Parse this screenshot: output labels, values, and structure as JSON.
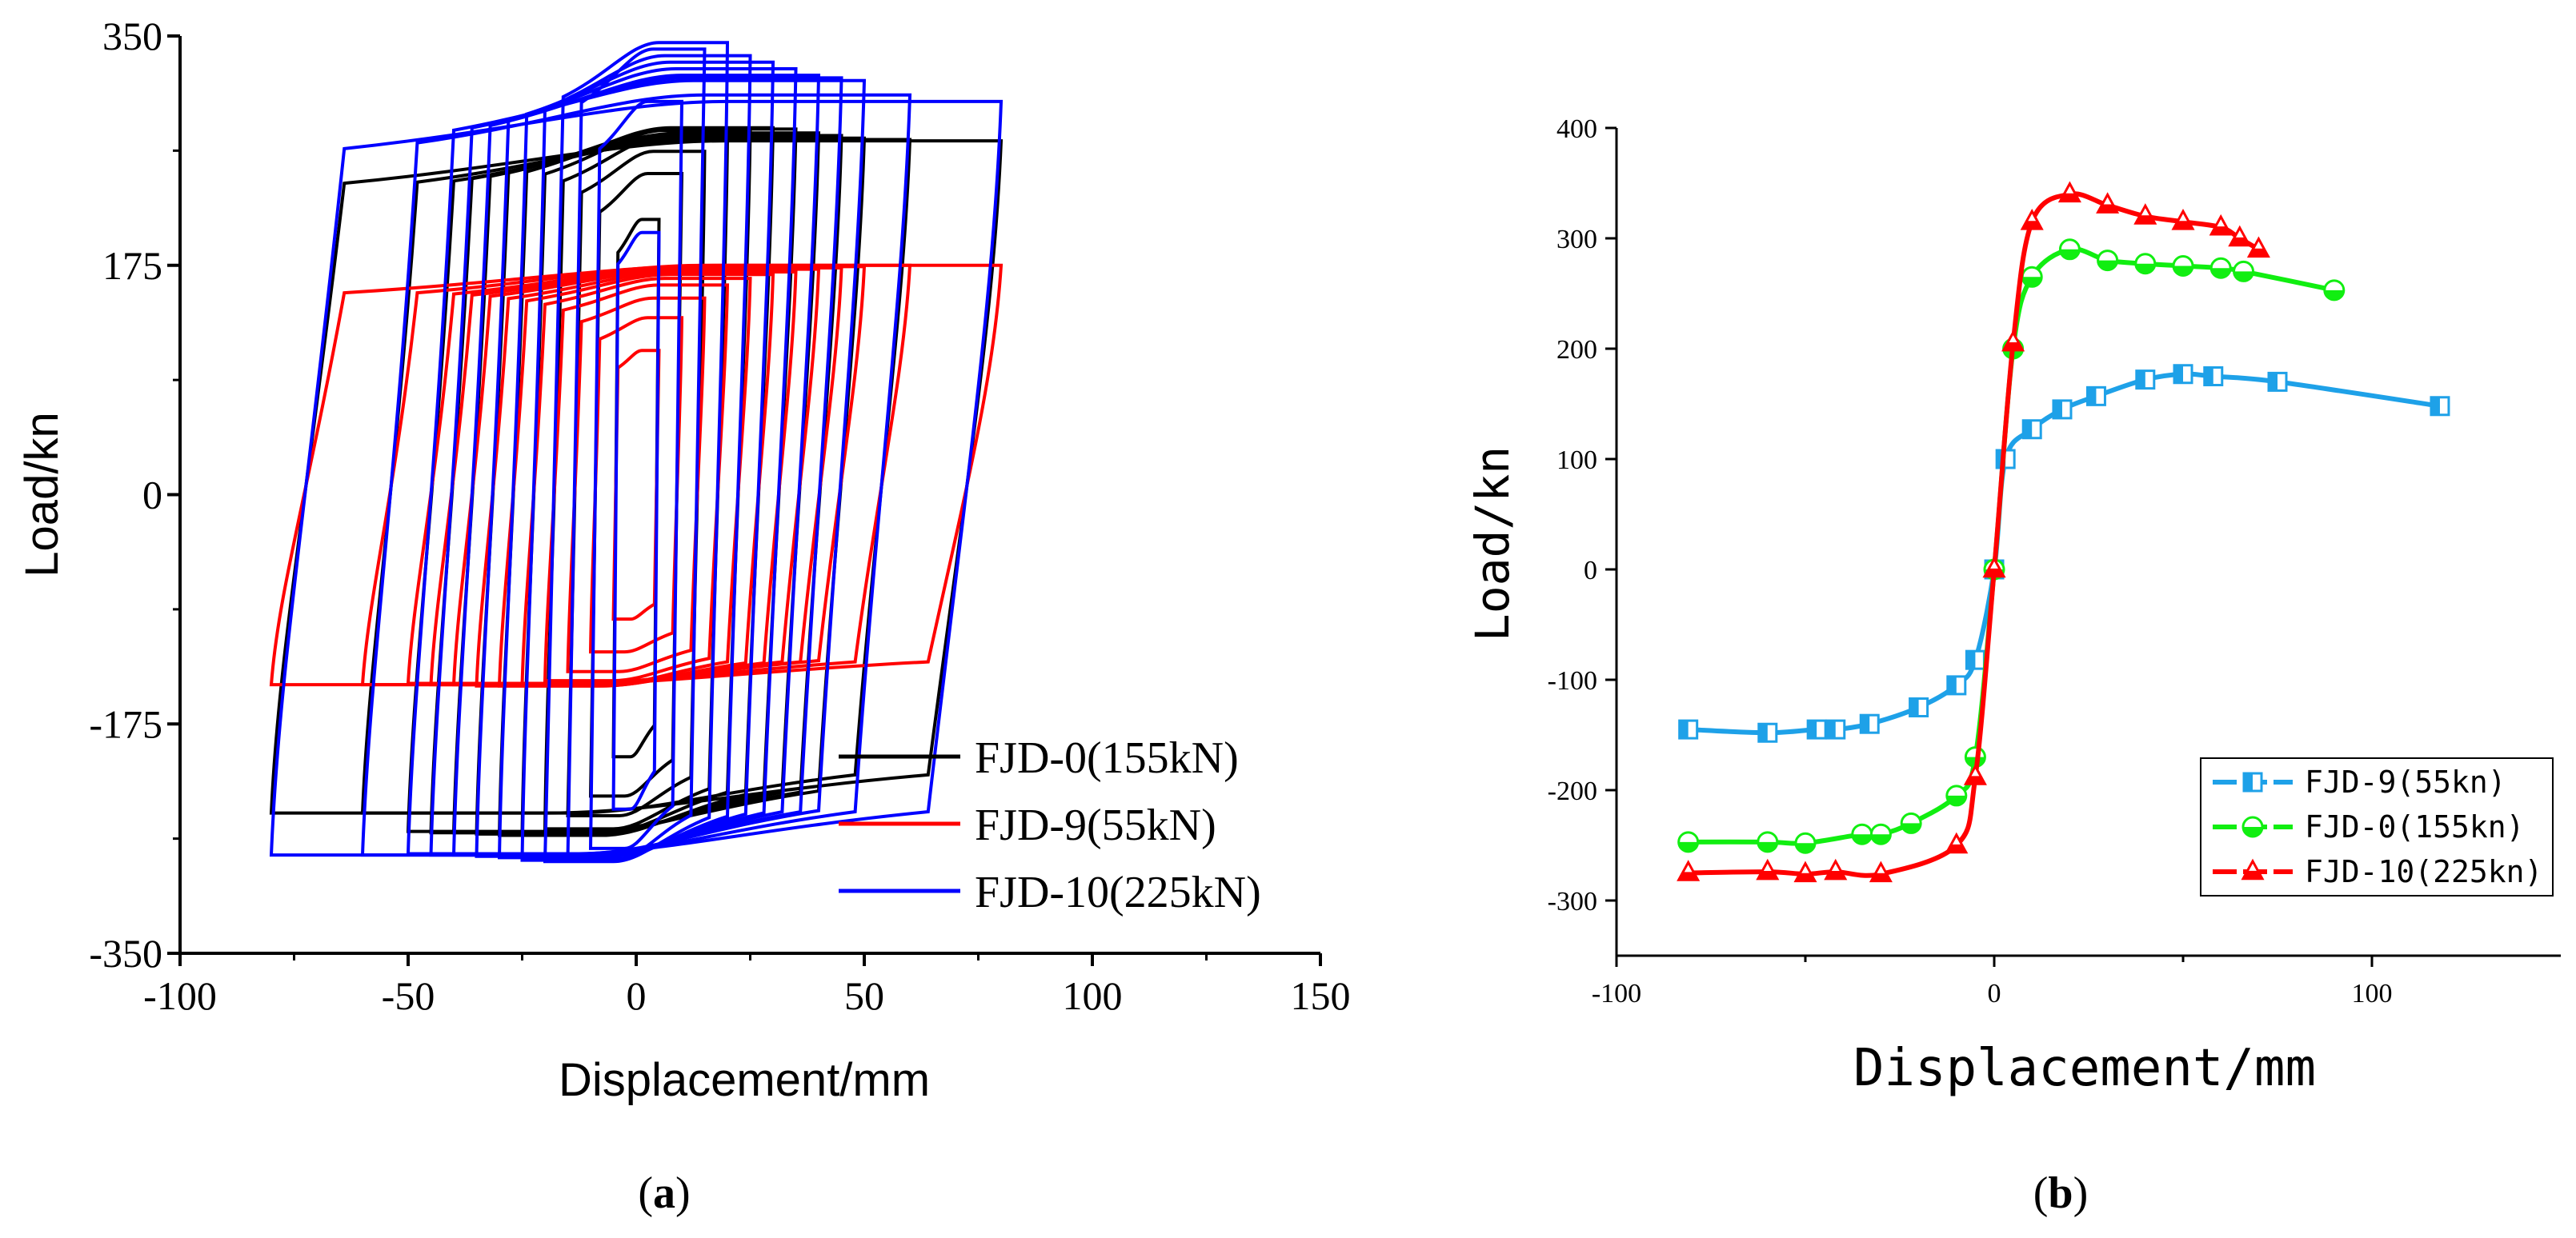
{
  "chart_data": [
    {
      "panel_label": "a",
      "type": "line",
      "subtype": "hysteresis",
      "xlabel": "Displacement/mm",
      "ylabel": "Load/kn",
      "xlim": [
        -100,
        150
      ],
      "ylim": [
        -350,
        350
      ],
      "xticks": [
        -100,
        -50,
        0,
        50,
        100,
        150
      ],
      "yticks": [
        -350,
        -175,
        0,
        175,
        350
      ],
      "grid": false,
      "legend_position": "bottom-right",
      "series": [
        {
          "name": "FJD-0(155kN)",
          "color": "#000000",
          "amplitudes": [
            5,
            10,
            15,
            20,
            25,
            30,
            35,
            40,
            45,
            50,
            60,
            80
          ],
          "peak_pos": [
            210,
            245,
            262,
            272,
            278,
            280,
            279,
            276,
            274,
            272,
            271,
            270
          ],
          "peak_neg": [
            -200,
            -230,
            -245,
            -255,
            -258,
            -260,
            -259,
            -258,
            -258,
            -257,
            -243,
            -243
          ]
        },
        {
          "name": "FJD-9(55kN)",
          "color": "#ff0000",
          "amplitudes": [
            5,
            10,
            15,
            20,
            25,
            30,
            35,
            40,
            45,
            50,
            60,
            80
          ],
          "peak_pos": [
            110,
            135,
            150,
            160,
            165,
            168,
            170,
            172,
            173,
            174,
            175,
            175
          ],
          "peak_neg": [
            -95,
            -120,
            -135,
            -142,
            -145,
            -146,
            -146,
            -145,
            -145,
            -144,
            -145,
            -145
          ]
        },
        {
          "name": "FJD-10(225kN)",
          "color": "#0000ff",
          "amplitudes": [
            5,
            10,
            15,
            20,
            25,
            30,
            35,
            40,
            45,
            50,
            60,
            80
          ],
          "peak_pos": [
            200,
            300,
            340,
            345,
            335,
            330,
            325,
            320,
            318,
            316,
            305,
            300
          ],
          "peak_neg": [
            -240,
            -270,
            -278,
            -280,
            -279,
            -277,
            -276,
            -275,
            -275,
            -274,
            -275,
            -275
          ]
        }
      ]
    },
    {
      "panel_label": "b",
      "type": "line",
      "subtype": "skeleton",
      "xlabel": "Displacement/mm",
      "ylabel": "Load/kn",
      "xlim": [
        -100,
        150
      ],
      "ylim": [
        -350,
        400
      ],
      "xticks": [
        -100,
        0,
        100
      ],
      "yticks": [
        -300,
        -200,
        -100,
        0,
        100,
        200,
        300,
        400
      ],
      "grid": false,
      "legend_position": "bottom-right",
      "series": [
        {
          "name": "FJD-9(55kn)",
          "color": "#1ea1e8",
          "marker": "half-square",
          "x": [
            -81,
            -60,
            -47,
            -42,
            -33,
            -20,
            -10,
            -5,
            0,
            3,
            10,
            18,
            27,
            40,
            50,
            58,
            75,
            118
          ],
          "y": [
            -145,
            -148,
            -145,
            -145,
            -140,
            -125,
            -105,
            -82,
            0,
            100,
            127,
            145,
            157,
            172,
            177,
            175,
            170,
            148
          ]
        },
        {
          "name": "FJD-0(155kn)",
          "color": "#11ee11",
          "marker": "half-circle",
          "x": [
            -81,
            -60,
            -50,
            -35,
            -30,
            -22,
            -10,
            -5,
            0,
            5,
            10,
            20,
            30,
            40,
            50,
            60,
            66,
            90
          ],
          "y": [
            -247,
            -247,
            -248,
            -240,
            -240,
            -230,
            -205,
            -170,
            0,
            200,
            265,
            290,
            280,
            277,
            275,
            273,
            270,
            253
          ]
        },
        {
          "name": "FJD-10(225kn)",
          "color": "#ff0000",
          "marker": "triangle",
          "x": [
            -81,
            -60,
            -50,
            -42,
            -30,
            -10,
            -5,
            0,
            5,
            10,
            20,
            30,
            40,
            50,
            60,
            65,
            70
          ],
          "y": [
            -275,
            -274,
            -276,
            -274,
            -276,
            -250,
            -188,
            0,
            205,
            315,
            340,
            330,
            320,
            315,
            310,
            300,
            290
          ]
        }
      ]
    }
  ],
  "captions": {
    "a": "a",
    "b": "b"
  }
}
